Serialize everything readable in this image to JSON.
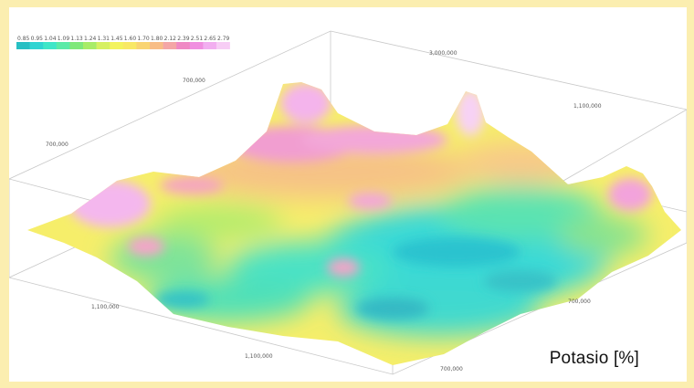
{
  "chart_data": {
    "type": "heatmap",
    "title": "Potasio [%]",
    "colorbar": {
      "labels": [
        "0.85",
        "0.95",
        "1.04",
        "1.09",
        "1.13",
        "1.24",
        "1.31",
        "1.45",
        "1.60",
        "1.70",
        "1.80",
        "2.12",
        "2.39",
        "2.51",
        "2.65",
        "2.79"
      ],
      "colors": [
        "#27bfc3",
        "#2fd4d2",
        "#3ee6c8",
        "#5aeaa7",
        "#7fe87a",
        "#a8ec67",
        "#d6f061",
        "#f3f35e",
        "#f8e865",
        "#f9d472",
        "#f8bd86",
        "#f4a6a6",
        "#ef89c4",
        "#f08fe0",
        "#f2aef0",
        "#f7cdf5"
      ]
    },
    "axes": {
      "ticks": [
        {
          "label": "3,000,000",
          "pos": "back-right corner"
        },
        {
          "label": "700,000",
          "pos": "back-left"
        },
        {
          "label": "1,100,000",
          "pos": "right edge"
        },
        {
          "label": "700,000",
          "pos": "left edge"
        },
        {
          "label": "1,100,000",
          "pos": "front-left"
        },
        {
          "label": "1,100,000",
          "pos": "front"
        },
        {
          "label": "700,000",
          "pos": "right front"
        },
        {
          "label": "700,000",
          "pos": "front-right corner"
        }
      ]
    },
    "surface_regions": [
      {
        "level": "high",
        "area": "back ridge and left peak"
      },
      {
        "level": "medium",
        "area": "central yellow-green band"
      },
      {
        "level": "low",
        "area": "central-right basin"
      }
    ]
  }
}
